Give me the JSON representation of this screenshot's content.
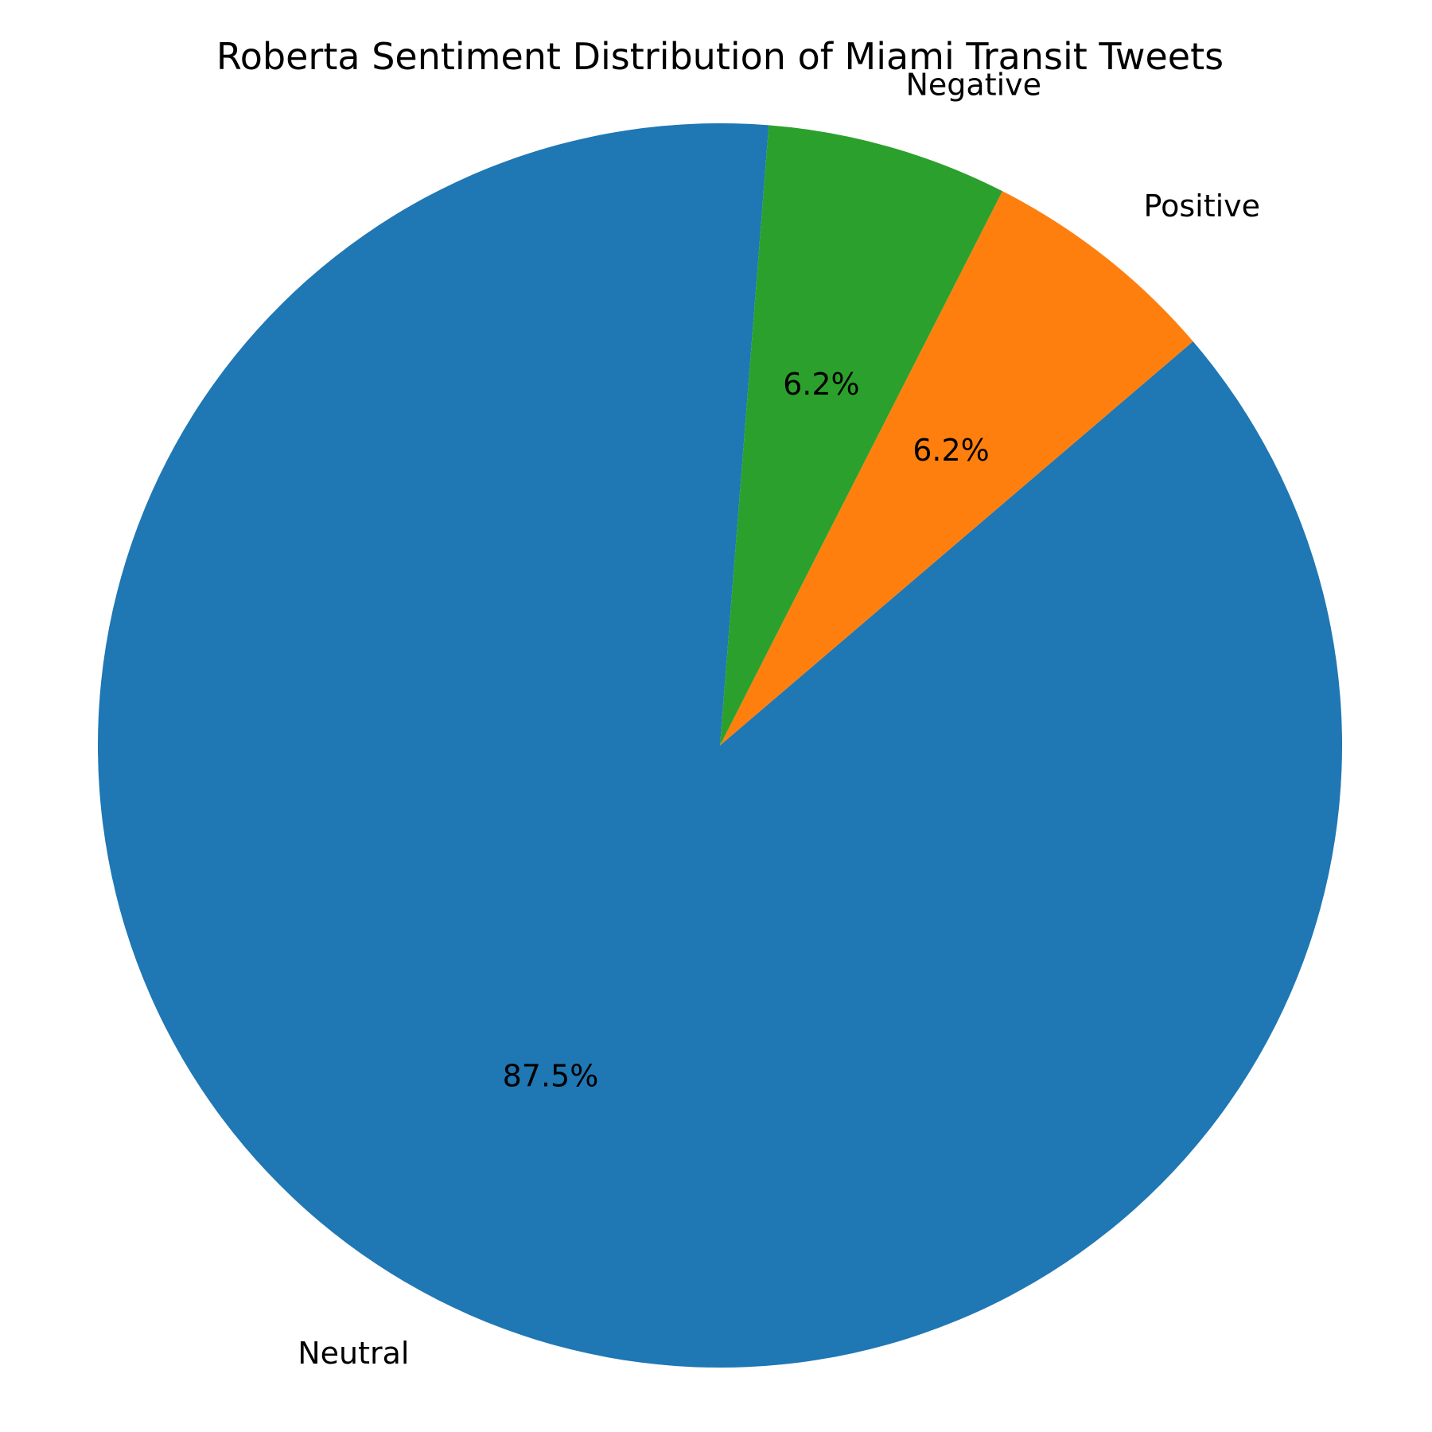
{
  "chart_data": {
    "type": "pie",
    "title": "Roberta Sentiment Distribution of Miami Transit Tweets",
    "slices": [
      {
        "label": "Neutral",
        "value": 87.5,
        "pct_label": "87.5%",
        "color": "#1f77b4"
      },
      {
        "label": "Positive",
        "value": 6.25,
        "pct_label": "6.2%",
        "color": "#ff7f0e"
      },
      {
        "label": "Negative",
        "value": 6.25,
        "pct_label": "6.2%",
        "color": "#2ca02c"
      }
    ],
    "direction": "counterclockwise",
    "legend": "none"
  }
}
